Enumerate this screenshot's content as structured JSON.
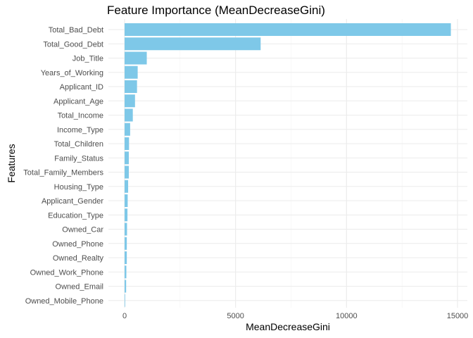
{
  "chart_data": {
    "type": "bar",
    "orientation": "horizontal",
    "title": "Feature Importance (MeanDecreaseGini)",
    "xlabel": "MeanDecreaseGini",
    "ylabel": "Features",
    "xlim": [
      0,
      15000
    ],
    "x_ticks": [
      0,
      5000,
      10000,
      15000
    ],
    "grid": true,
    "bar_color": "#7EC8E8",
    "categories": [
      "Total_Bad_Debt",
      "Total_Good_Debt",
      "Job_Title",
      "Years_of_Working",
      "Applicant_ID",
      "Applicant_Age",
      "Total_Income",
      "Income_Type",
      "Total_Children",
      "Family_Status",
      "Total_Family_Members",
      "Housing_Type",
      "Applicant_Gender",
      "Education_Type",
      "Owned_Car",
      "Owned_Phone",
      "Owned_Realty",
      "Owned_Work_Phone",
      "Owned_Email",
      "Owned_Mobile_Phone"
    ],
    "values": [
      14700,
      6130,
      1000,
      590,
      560,
      470,
      370,
      250,
      200,
      190,
      190,
      160,
      140,
      130,
      110,
      100,
      100,
      80,
      70,
      20
    ]
  }
}
